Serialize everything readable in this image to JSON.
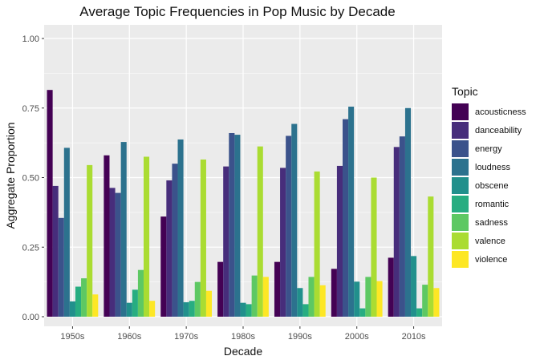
{
  "chart_data": {
    "type": "bar",
    "title": "Average Topic Frequencies in Pop Music by Decade",
    "xlabel": "Decade",
    "ylabel": "Aggregate Proportion",
    "ylim": [
      0,
      1.05
    ],
    "yticks": [
      "0.00",
      "0.25",
      "0.50",
      "0.75",
      "1.00"
    ],
    "ytick_values": [
      0,
      0.25,
      0.5,
      0.75,
      1.0
    ],
    "grid": true,
    "legend_position": "right",
    "legend_title": "Topic",
    "categories": [
      "1950s",
      "1960s",
      "1970s",
      "1980s",
      "1990s",
      "2000s",
      "2010s"
    ],
    "series": [
      {
        "name": "acousticness",
        "color": "#440154",
        "values": [
          0.815,
          0.58,
          0.36,
          0.197,
          0.197,
          0.172,
          0.212
        ]
      },
      {
        "name": "danceability",
        "color": "#472D7B",
        "values": [
          0.47,
          0.463,
          0.49,
          0.54,
          0.535,
          0.542,
          0.61
        ]
      },
      {
        "name": "energy",
        "color": "#3B528B",
        "values": [
          0.355,
          0.445,
          0.55,
          0.66,
          0.65,
          0.71,
          0.648
        ]
      },
      {
        "name": "loudness",
        "color": "#2C728E",
        "values": [
          0.607,
          0.628,
          0.637,
          0.654,
          0.693,
          0.755,
          0.75
        ]
      },
      {
        "name": "obscene",
        "color": "#21908C",
        "values": [
          0.055,
          0.05,
          0.052,
          0.05,
          0.103,
          0.126,
          0.218
        ]
      },
      {
        "name": "romantic",
        "color": "#27AD81",
        "values": [
          0.108,
          0.097,
          0.057,
          0.045,
          0.045,
          0.03,
          0.03
        ]
      },
      {
        "name": "sadness",
        "color": "#5DC863",
        "values": [
          0.138,
          0.168,
          0.125,
          0.148,
          0.143,
          0.143,
          0.115
        ]
      },
      {
        "name": "valence",
        "color": "#AADC32",
        "values": [
          0.545,
          0.575,
          0.565,
          0.612,
          0.522,
          0.5,
          0.432
        ]
      },
      {
        "name": "violence",
        "color": "#FDE725",
        "values": [
          0.08,
          0.057,
          0.093,
          0.143,
          0.113,
          0.128,
          0.103
        ]
      }
    ]
  }
}
